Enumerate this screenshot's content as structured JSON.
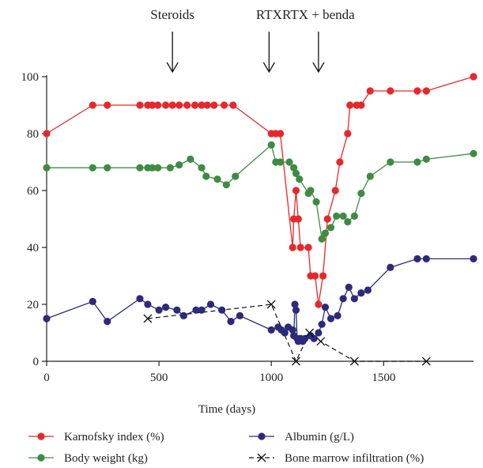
{
  "chart_data": {
    "type": "line",
    "xlabel": "Time (days)",
    "ylabel": "",
    "xlim": [
      0,
      1900
    ],
    "ylim": [
      0,
      100
    ],
    "x_ticks": [
      0,
      500,
      1000,
      1500
    ],
    "y_ticks": [
      0,
      20,
      40,
      60,
      80,
      100
    ],
    "grid": false,
    "legend_position": "bottom",
    "annotations": [
      {
        "label": "Steroids",
        "x": 560
      },
      {
        "label": "RTX",
        "x": 990
      },
      {
        "label": "RTX + benda",
        "x": 1210
      }
    ],
    "series": [
      {
        "name": "Karnofsky index (%)",
        "color": "#e8272a",
        "marker": "circle",
        "dash": "solid",
        "points": [
          [
            0,
            80
          ],
          [
            205,
            90
          ],
          [
            270,
            90
          ],
          [
            415,
            90
          ],
          [
            450,
            90
          ],
          [
            470,
            90
          ],
          [
            495,
            90
          ],
          [
            530,
            90
          ],
          [
            560,
            90
          ],
          [
            590,
            90
          ],
          [
            625,
            90
          ],
          [
            660,
            90
          ],
          [
            690,
            90
          ],
          [
            715,
            90
          ],
          [
            745,
            90
          ],
          [
            790,
            90
          ],
          [
            830,
            90
          ],
          [
            1000,
            80
          ],
          [
            1020,
            80
          ],
          [
            1040,
            80
          ],
          [
            1095,
            40
          ],
          [
            1100,
            50
          ],
          [
            1110,
            60
          ],
          [
            1120,
            50
          ],
          [
            1130,
            40
          ],
          [
            1165,
            40
          ],
          [
            1175,
            30
          ],
          [
            1195,
            30
          ],
          [
            1210,
            20
          ],
          [
            1230,
            30
          ],
          [
            1250,
            50
          ],
          [
            1285,
            60
          ],
          [
            1305,
            70
          ],
          [
            1340,
            80
          ],
          [
            1350,
            90
          ],
          [
            1380,
            90
          ],
          [
            1400,
            90
          ],
          [
            1440,
            95
          ],
          [
            1530,
            95
          ],
          [
            1650,
            95
          ],
          [
            1690,
            95
          ],
          [
            1900,
            100
          ]
        ]
      },
      {
        "name": "Body weight (kg)",
        "color": "#3e8b43",
        "marker": "circle",
        "dash": "solid",
        "points": [
          [
            0,
            68
          ],
          [
            205,
            68
          ],
          [
            270,
            68
          ],
          [
            415,
            68
          ],
          [
            450,
            68
          ],
          [
            470,
            68
          ],
          [
            495,
            68
          ],
          [
            550,
            68
          ],
          [
            590,
            69
          ],
          [
            640,
            71
          ],
          [
            690,
            68
          ],
          [
            710,
            65
          ],
          [
            760,
            64
          ],
          [
            800,
            62
          ],
          [
            840,
            65
          ],
          [
            1000,
            76
          ],
          [
            1020,
            70
          ],
          [
            1040,
            70
          ],
          [
            1080,
            70
          ],
          [
            1100,
            68
          ],
          [
            1110,
            66
          ],
          [
            1125,
            64
          ],
          [
            1165,
            59
          ],
          [
            1175,
            60
          ],
          [
            1200,
            56
          ],
          [
            1225,
            43
          ],
          [
            1240,
            45
          ],
          [
            1265,
            47
          ],
          [
            1290,
            51
          ],
          [
            1320,
            51
          ],
          [
            1340,
            49
          ],
          [
            1370,
            51
          ],
          [
            1400,
            59
          ],
          [
            1440,
            65
          ],
          [
            1530,
            70
          ],
          [
            1650,
            70
          ],
          [
            1690,
            71
          ],
          [
            1900,
            73
          ]
        ]
      },
      {
        "name": "Albumin (g/L)",
        "color": "#2c2a7a",
        "marker": "circle",
        "dash": "solid",
        "points": [
          [
            0,
            15
          ],
          [
            205,
            21
          ],
          [
            270,
            14
          ],
          [
            415,
            22
          ],
          [
            450,
            20
          ],
          [
            500,
            18
          ],
          [
            530,
            19
          ],
          [
            580,
            18
          ],
          [
            610,
            16
          ],
          [
            665,
            18
          ],
          [
            690,
            18
          ],
          [
            730,
            20
          ],
          [
            780,
            18
          ],
          [
            820,
            14
          ],
          [
            860,
            16
          ],
          [
            1000,
            11
          ],
          [
            1030,
            12
          ],
          [
            1045,
            11
          ],
          [
            1060,
            10
          ],
          [
            1075,
            12
          ],
          [
            1095,
            11
          ],
          [
            1100,
            9
          ],
          [
            1105,
            20
          ],
          [
            1110,
            18
          ],
          [
            1115,
            8
          ],
          [
            1120,
            7
          ],
          [
            1130,
            8
          ],
          [
            1140,
            7
          ],
          [
            1150,
            8
          ],
          [
            1175,
            9
          ],
          [
            1190,
            8
          ],
          [
            1210,
            10
          ],
          [
            1225,
            13
          ],
          [
            1240,
            19
          ],
          [
            1265,
            15
          ],
          [
            1295,
            16
          ],
          [
            1320,
            22
          ],
          [
            1345,
            26
          ],
          [
            1370,
            22
          ],
          [
            1400,
            24
          ],
          [
            1430,
            25
          ],
          [
            1530,
            33
          ],
          [
            1650,
            36
          ],
          [
            1690,
            36
          ],
          [
            1900,
            36
          ]
        ]
      },
      {
        "name": "Bone marrow infiltration (%)",
        "color": "#111111",
        "marker": "x",
        "dash": "dashed",
        "points": [
          [
            450,
            15
          ],
          [
            1000,
            20
          ],
          [
            1110,
            0
          ],
          [
            1170,
            10
          ],
          [
            1220,
            7
          ],
          [
            1370,
            0
          ],
          [
            1690,
            0
          ]
        ]
      }
    ]
  }
}
